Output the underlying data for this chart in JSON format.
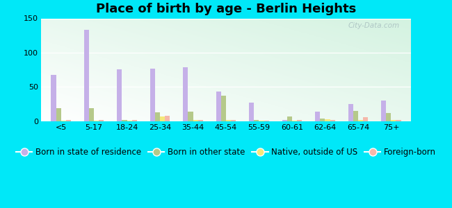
{
  "title": "Place of birth by age - Berlin Heights",
  "categories": [
    "<5",
    "5-17",
    "18-24",
    "25-34",
    "35-44",
    "45-54",
    "55-59",
    "60-61",
    "62-64",
    "65-74",
    "75+"
  ],
  "series": {
    "Born in state of residence": [
      68,
      133,
      76,
      77,
      79,
      43,
      27,
      2,
      14,
      25,
      30
    ],
    "Born in other state": [
      19,
      19,
      2,
      13,
      14,
      37,
      2,
      7,
      4,
      15,
      12
    ],
    "Native, outside of US": [
      1,
      1,
      1,
      7,
      2,
      2,
      1,
      1,
      3,
      2,
      2
    ],
    "Foreign-born": [
      2,
      2,
      2,
      8,
      2,
      2,
      1,
      2,
      2,
      6,
      2
    ]
  },
  "colors": {
    "Born in state of residence": "#c5b0e8",
    "Born in other state": "#b5c98a",
    "Native, outside of US": "#f5e87a",
    "Foreign-born": "#f5b8aa"
  },
  "ylim": [
    0,
    150
  ],
  "yticks": [
    0,
    50,
    100,
    150
  ],
  "outer_bg": "#00e8f8",
  "title_fontsize": 13,
  "legend_fontsize": 8.5,
  "bar_width": 0.15
}
